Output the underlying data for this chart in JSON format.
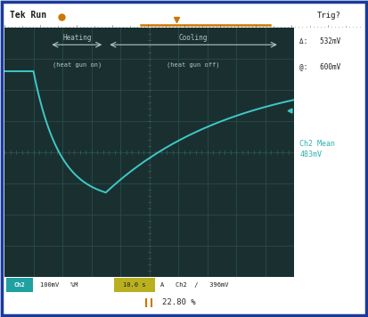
{
  "title_left": "Tek Run",
  "title_right": "Trig?",
  "outer_bg": "#dce8f0",
  "screen_bg": "#1a3030",
  "grid_color": "#2a5050",
  "curve_color": "#40c8c8",
  "border_color": "#1a3a9a",
  "top_bar_bg": "#c0d0cc",
  "right_panel_bg": "#c0d0cc",
  "bot_bar_bg": "#c0d0cc",
  "delta_text": "Δ:   532mV",
  "ref_text": "@:   600mV",
  "mean_text": "Ch2 Mean\n483mV",
  "heating_label": "Heating",
  "heating_sublabel": "(heat gun on)",
  "cooling_label": "Cooling",
  "cooling_sublabel": "(heat gun off)",
  "status_ch2": "Ch2",
  "status_rest": "100mV   %M",
  "status_time": "10.0 s",
  "status_tail": "A   Ch2  /   396mV",
  "bottom_pct": "22.80 %",
  "ch2_tag_color": "#20a0a0",
  "time_tag_color": "#b8b020",
  "orange_color": "#cc7700"
}
